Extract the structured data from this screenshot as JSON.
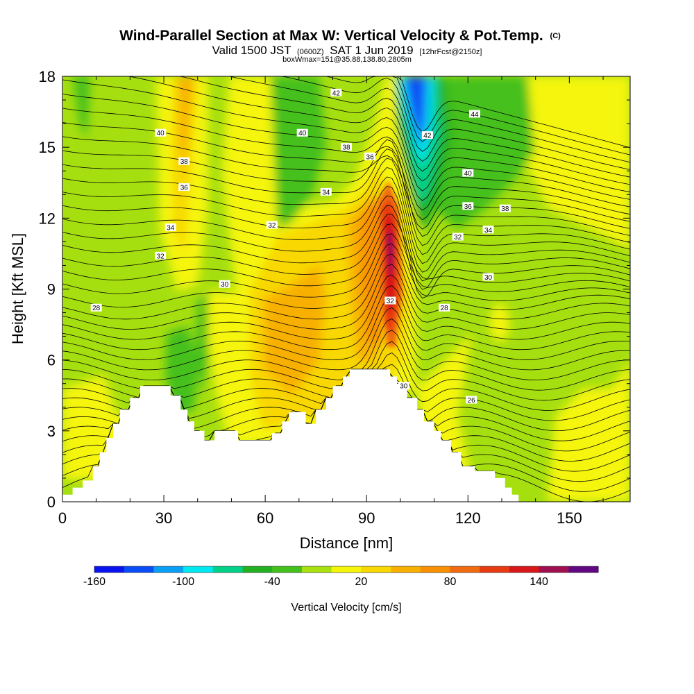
{
  "chart_data": {
    "type": "contour-cross-section",
    "title": "Wind-Parallel Section at Max W: Vertical Velocity & Pot.Temp.",
    "title_suffix": "(C)",
    "subtitle": {
      "valid_prefix": "Valid 1500 JST",
      "utc": "(0600Z)",
      "date": "SAT 1 Jun 2019",
      "forecast": "[12hrFcst@2150z]"
    },
    "box_info": "boxWmax=151@35.88,138.80,2805m",
    "xlabel": "Distance [nm]",
    "ylabel": "Height [Kft MSL]",
    "xlim": [
      0,
      168
    ],
    "ylim": [
      0,
      18
    ],
    "x_ticks": [
      0,
      30,
      60,
      90,
      120,
      150
    ],
    "y_ticks": [
      0,
      3,
      6,
      9,
      12,
      15,
      18
    ],
    "colorbar": {
      "title": "Vertical Velocity [cm/s]",
      "labels": [
        "-160",
        "-100",
        "-40",
        "20",
        "80",
        "140"
      ],
      "colors": [
        "#0a14f0",
        "#0a4cf5",
        "#0a9ef5",
        "#00e8f0",
        "#00d088",
        "#22b022",
        "#44c01c",
        "#a8e010",
        "#f5f50a",
        "#f8d800",
        "#f8b000",
        "#f89000",
        "#f06a10",
        "#e83a10",
        "#d81818",
        "#a01050",
        "#600880"
      ]
    },
    "terrain": [
      [
        0,
        0.3
      ],
      [
        3,
        0.3
      ],
      [
        3,
        0.6
      ],
      [
        6,
        0.6
      ],
      [
        6,
        0.9
      ],
      [
        9,
        0.9
      ],
      [
        9,
        1.5
      ],
      [
        11,
        1.5
      ],
      [
        11,
        2.1
      ],
      [
        13,
        2.1
      ],
      [
        13,
        2.7
      ],
      [
        15,
        2.7
      ],
      [
        15,
        3.3
      ],
      [
        17,
        3.3
      ],
      [
        17,
        3.9
      ],
      [
        20,
        3.9
      ],
      [
        20,
        4.4
      ],
      [
        23,
        4.4
      ],
      [
        23,
        4.9
      ],
      [
        32,
        4.9
      ],
      [
        32,
        4.5
      ],
      [
        35,
        4.5
      ],
      [
        35,
        3.9
      ],
      [
        37,
        3.9
      ],
      [
        37,
        3.4
      ],
      [
        39,
        3.4
      ],
      [
        39,
        3.0
      ],
      [
        42,
        3.0
      ],
      [
        42,
        2.6
      ],
      [
        45,
        2.6
      ],
      [
        45,
        3.0
      ],
      [
        52,
        3.0
      ],
      [
        52,
        2.6
      ],
      [
        62,
        2.6
      ],
      [
        62,
        2.9
      ],
      [
        65,
        2.9
      ],
      [
        65,
        3.4
      ],
      [
        67,
        3.4
      ],
      [
        67,
        3.8
      ],
      [
        72,
        3.8
      ],
      [
        72,
        3.3
      ],
      [
        75,
        3.3
      ],
      [
        75,
        3.9
      ],
      [
        78,
        3.9
      ],
      [
        78,
        4.4
      ],
      [
        80,
        4.4
      ],
      [
        80,
        4.9
      ],
      [
        83,
        4.9
      ],
      [
        83,
        5.3
      ],
      [
        85,
        5.3
      ],
      [
        85,
        5.6
      ],
      [
        92,
        5.6
      ],
      [
        92,
        5.6
      ],
      [
        97,
        5.6
      ],
      [
        97,
        5.3
      ],
      [
        99,
        5.3
      ],
      [
        99,
        5.0
      ],
      [
        102,
        5.0
      ],
      [
        102,
        4.4
      ],
      [
        105,
        4.4
      ],
      [
        105,
        3.9
      ],
      [
        107,
        3.9
      ],
      [
        107,
        3.4
      ],
      [
        110,
        3.4
      ],
      [
        110,
        3.0
      ],
      [
        112,
        3.0
      ],
      [
        112,
        2.6
      ],
      [
        115,
        2.6
      ],
      [
        115,
        2.1
      ],
      [
        118,
        2.1
      ],
      [
        118,
        1.5
      ],
      [
        122,
        1.5
      ],
      [
        122,
        1.3
      ],
      [
        128,
        1.3
      ],
      [
        128,
        1.0
      ],
      [
        131,
        1.0
      ],
      [
        131,
        0.6
      ],
      [
        133,
        0.6
      ],
      [
        133,
        0.3
      ],
      [
        135,
        0.3
      ],
      [
        135,
        0
      ],
      [
        168,
        0
      ]
    ],
    "isentropes": {
      "levels": [
        26,
        28,
        30,
        32,
        34,
        36,
        38,
        40,
        42,
        44
      ],
      "labels": [
        {
          "text": "28",
          "x": 10,
          "y": 8.2
        },
        {
          "text": "30",
          "x": 48,
          "y": 9.2
        },
        {
          "text": "32",
          "x": 29,
          "y": 10.4
        },
        {
          "text": "34",
          "x": 32,
          "y": 11.6
        },
        {
          "text": "36",
          "x": 36,
          "y": 13.3
        },
        {
          "text": "38",
          "x": 36,
          "y": 14.4
        },
        {
          "text": "40",
          "x": 29,
          "y": 15.6
        },
        {
          "text": "32",
          "x": 62,
          "y": 11.7
        },
        {
          "text": "34",
          "x": 78,
          "y": 13.1
        },
        {
          "text": "40",
          "x": 71,
          "y": 15.6
        },
        {
          "text": "38",
          "x": 84,
          "y": 15.0
        },
        {
          "text": "36",
          "x": 91,
          "y": 14.6
        },
        {
          "text": "42",
          "x": 81,
          "y": 17.3
        },
        {
          "text": "32",
          "x": 97,
          "y": 8.5
        },
        {
          "text": "30",
          "x": 101,
          "y": 4.9
        },
        {
          "text": "28",
          "x": 113,
          "y": 8.2
        },
        {
          "text": "26",
          "x": 121,
          "y": 4.3
        },
        {
          "text": "30",
          "x": 126,
          "y": 9.5
        },
        {
          "text": "32",
          "x": 117,
          "y": 11.2
        },
        {
          "text": "34",
          "x": 126,
          "y": 11.5
        },
        {
          "text": "36",
          "x": 120,
          "y": 12.5
        },
        {
          "text": "38",
          "x": 131,
          "y": 12.4
        },
        {
          "text": "40",
          "x": 120,
          "y": 13.9
        },
        {
          "text": "42",
          "x": 108,
          "y": 15.5
        },
        {
          "text": "44",
          "x": 122,
          "y": 16.4
        }
      ]
    }
  }
}
